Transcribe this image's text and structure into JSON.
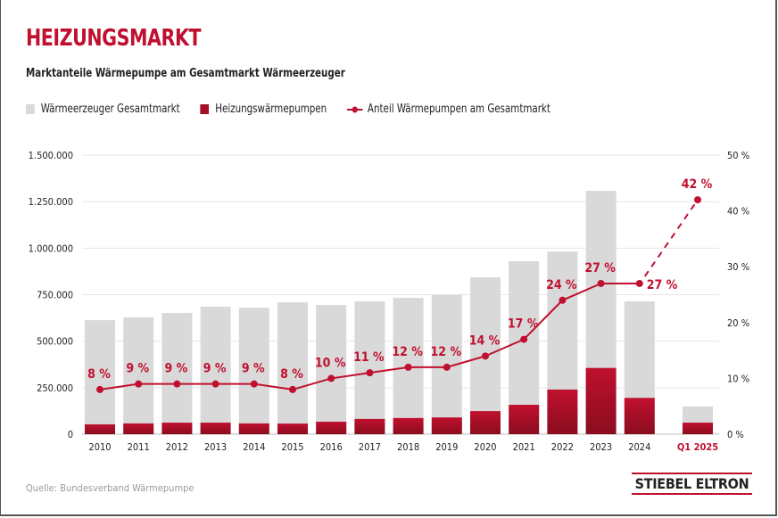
{
  "header": {
    "title": "HEIZUNGSMARKT",
    "subtitle": "Marktanteile Wärmepumpe am Gesamtmarkt Wärmeerzeuger"
  },
  "legend": [
    {
      "label": "Wärmeerzeuger Gesamtmarkt",
      "color": "#d9d9d9"
    },
    {
      "label": "Heizungswärmepumpen",
      "color": "#a50f25"
    },
    {
      "label": "Anteil Wärmepumpen am Gesamtmarkt",
      "color": "#c0102f"
    }
  ],
  "footer": {
    "source": "Quelle: Bundesverband Wärmepumpe",
    "logo": "STIEBEL ELTRON"
  },
  "chart_data": {
    "type": "bar",
    "title": "Marktanteile Wärmepumpe am Gesamtmarkt Wärmeerzeuger",
    "categories": [
      "2010",
      "2011",
      "2012",
      "2013",
      "2014",
      "2015",
      "2016",
      "2017",
      "2018",
      "2019",
      "2020",
      "2021",
      "2022",
      "2023",
      "2024",
      "Q1 2025"
    ],
    "series": [
      {
        "name": "Wärmeerzeuger Gesamtmarkt",
        "type": "bar",
        "color": "#d9d9d9",
        "values": [
          613000,
          628000,
          652000,
          685000,
          680000,
          709000,
          695000,
          714000,
          733000,
          748000,
          843000,
          930000,
          982000,
          1308000,
          714000,
          149000
        ]
      },
      {
        "name": "Heizungswärmepumpen",
        "type": "bar",
        "color": "#a50f25",
        "values": [
          53000,
          58000,
          62000,
          62000,
          58000,
          57000,
          67000,
          82000,
          87000,
          90000,
          124000,
          158000,
          240000,
          356000,
          195000,
          62000
        ]
      },
      {
        "name": "Anteil Wärmepumpen am Gesamtmarkt",
        "type": "line",
        "axis": "right",
        "color": "#c0102f",
        "values": [
          8,
          9,
          9,
          9,
          9,
          8,
          10,
          11,
          12,
          12,
          14,
          17,
          24,
          27,
          27,
          42
        ],
        "labels": [
          "8 %",
          "9 %",
          "9 %",
          "9 %",
          "9 %",
          "8 %",
          "10 %",
          "11 %",
          "12 %",
          "12 %",
          "14 %",
          "17 %",
          "24 %",
          "27 %",
          "27 %",
          "42 %"
        ],
        "dashed_last_segment": true
      }
    ],
    "y_left": {
      "ylim": [
        0,
        1500000
      ],
      "ticks": [
        "0",
        "250.000",
        "500.000",
        "750.000",
        "1.000.000",
        "1.250.000",
        "1.500.000"
      ]
    },
    "y_right": {
      "ylim": [
        0,
        50
      ],
      "ticks": [
        "0 %",
        "10 %",
        "20 %",
        "30 %",
        "40 %",
        "50 %"
      ]
    },
    "highlight_category": "Q1 2025",
    "grid": true,
    "legend_position": "top-left"
  }
}
